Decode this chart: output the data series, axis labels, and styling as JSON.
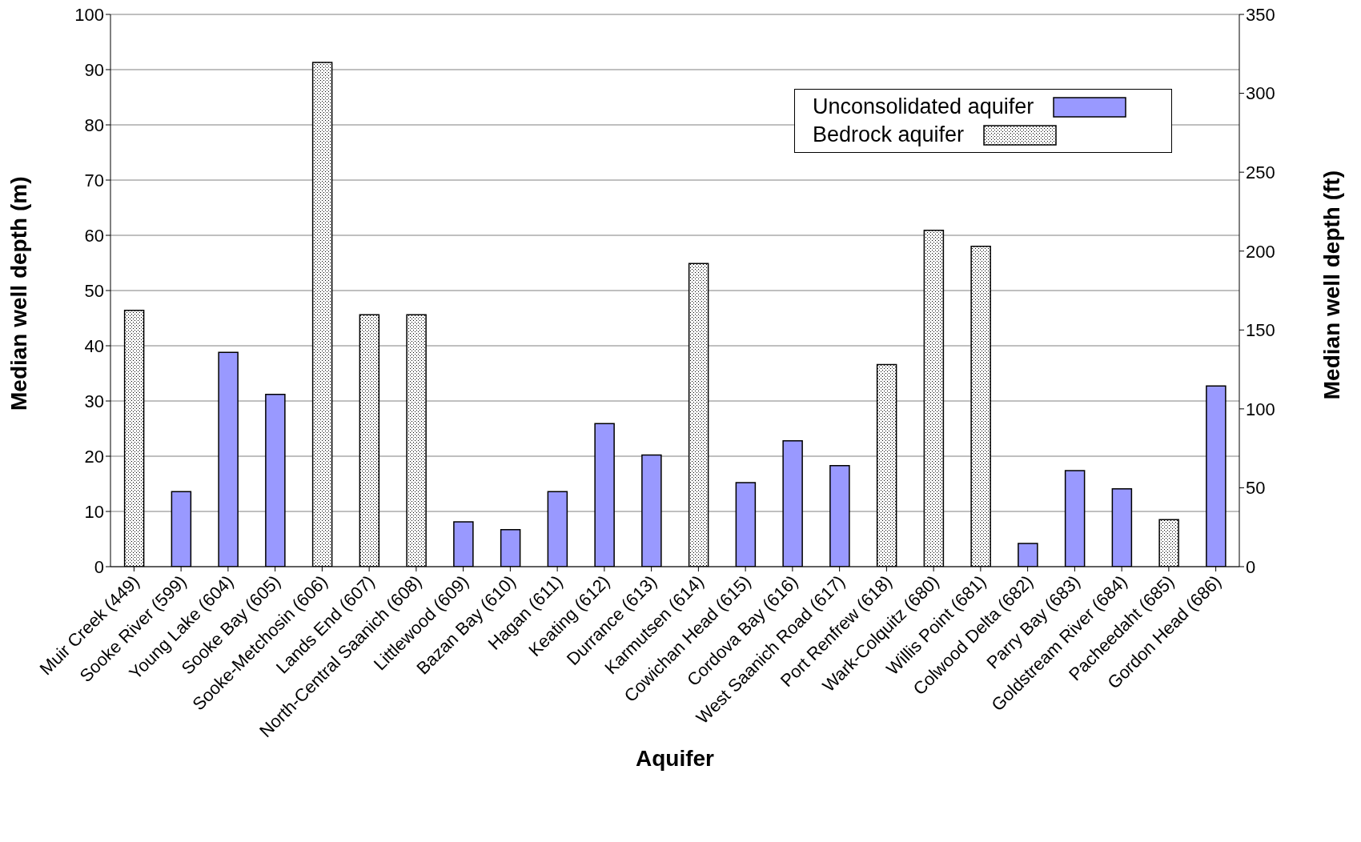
{
  "chart_data": {
    "type": "bar",
    "xlabel": "Aquifer",
    "ylabel": "Median well depth (m)",
    "y2label": "Median well depth (ft)",
    "categories": [
      "Muir Creek (449)",
      "Sooke River (599)",
      "Young Lake (604)",
      "Sooke Bay (605)",
      "Sooke-Metchosin (606)",
      "Lands End (607)",
      "North-Central Saanich (608)",
      "Littlewood (609)",
      "Bazan Bay (610)",
      "Hagan (611)",
      "Keating (612)",
      "Durrance (613)",
      "Karmutsen (614)",
      "Cowichan Head (615)",
      "Cordova Bay (616)",
      "West Saanich Road (617)",
      "Port Renfrew (618)",
      "Wark-Colquitz (680)",
      "Willis Point (681)",
      "Colwood Delta (682)",
      "Parry Bay (683)",
      "Goldstream River (684)",
      "Pacheedaht (685)",
      "Gordon Head (686)"
    ],
    "series": [
      {
        "name": "Unconsolidated aquifer",
        "color": "#9999ff",
        "values": [
          null,
          13.6,
          38.8,
          31.2,
          null,
          null,
          null,
          8.1,
          6.7,
          13.6,
          25.9,
          20.2,
          null,
          15.2,
          22.8,
          18.3,
          null,
          null,
          null,
          4.2,
          17.4,
          14.1,
          null,
          32.7
        ]
      },
      {
        "name": "Bedrock aquifer",
        "color": "#000000",
        "values": [
          46.4,
          null,
          null,
          null,
          91.3,
          45.6,
          45.6,
          null,
          null,
          null,
          null,
          null,
          54.9,
          null,
          null,
          null,
          36.6,
          60.9,
          58.0,
          null,
          null,
          null,
          8.5,
          null
        ]
      }
    ],
    "stacked": true,
    "ylim": [
      0,
      100
    ],
    "yticks": [
      0,
      10,
      20,
      30,
      40,
      50,
      60,
      70,
      80,
      90,
      100
    ],
    "y2lim": [
      0,
      350
    ],
    "y2ticks": [
      0,
      50,
      100,
      150,
      200,
      250,
      300,
      350
    ],
    "grid": "y",
    "legend": "top right"
  }
}
